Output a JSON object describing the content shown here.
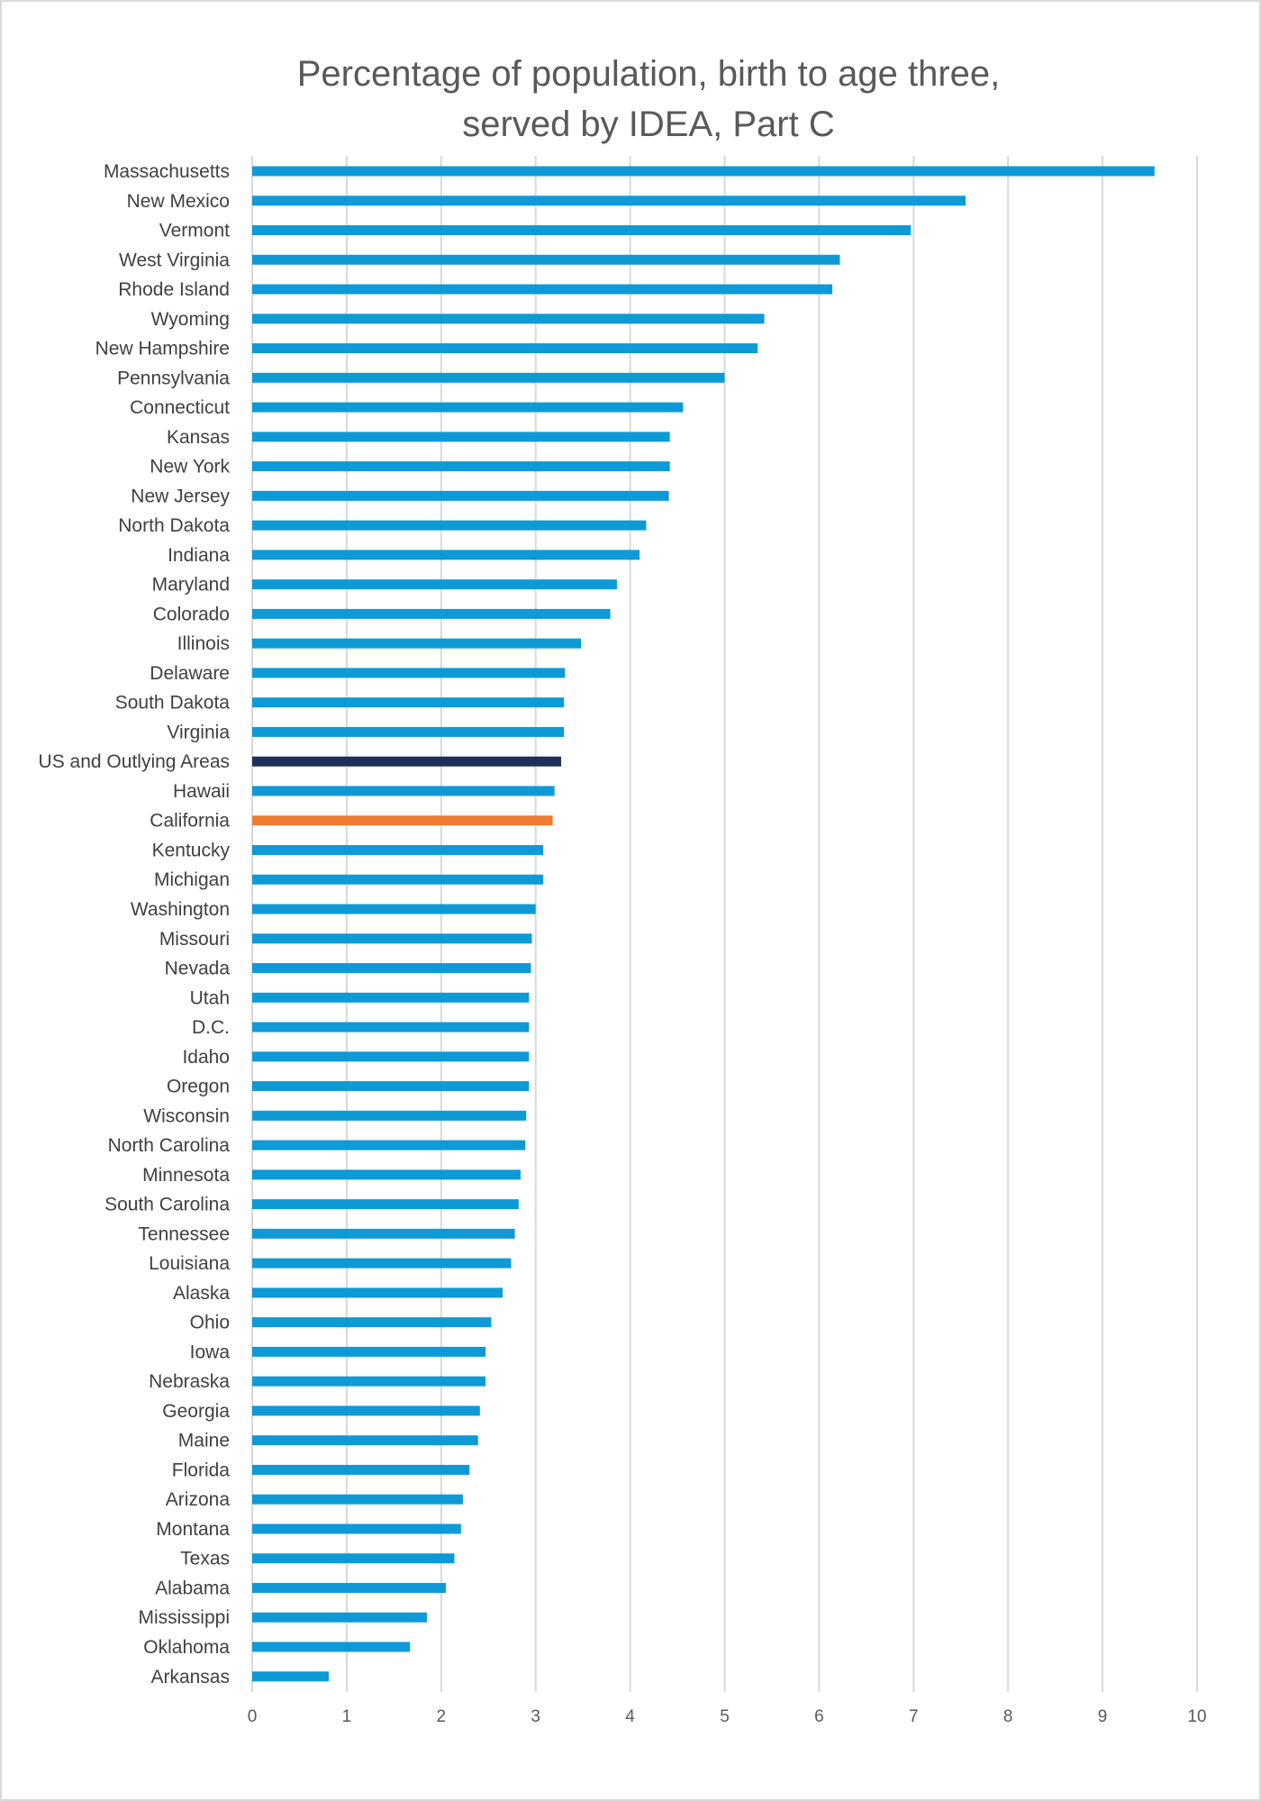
{
  "chart_data": {
    "type": "bar",
    "orientation": "horizontal",
    "title_lines": [
      "Percentage of population, birth to age three,",
      "served by IDEA, Part C"
    ],
    "categories": [
      "Massachusetts",
      "New Mexico",
      "Vermont",
      "West Virginia",
      "Rhode Island",
      "Wyoming",
      "New Hampshire",
      "Pennsylvania",
      "Connecticut",
      "Kansas",
      "New York",
      "New Jersey",
      "North Dakota",
      "Indiana",
      "Maryland",
      "Colorado",
      "Illinois",
      "Delaware",
      "South Dakota",
      "Virginia",
      "US and Outlying Areas",
      "Hawaii",
      "California",
      "Kentucky",
      "Michigan",
      "Washington",
      "Missouri",
      "Nevada",
      "Utah",
      "D.C.",
      "Idaho",
      "Oregon",
      "Wisconsin",
      "North Carolina",
      "Minnesota",
      "South Carolina",
      "Tennessee",
      "Louisiana",
      "Alaska",
      "Ohio",
      "Iowa",
      "Nebraska",
      "Georgia",
      "Maine",
      "Florida",
      "Arizona",
      "Montana",
      "Texas",
      "Alabama",
      "Mississippi",
      "Oklahoma",
      "Arkansas"
    ],
    "values": [
      9.55,
      7.55,
      6.97,
      6.22,
      6.14,
      5.42,
      5.35,
      5.0,
      4.56,
      4.42,
      4.42,
      4.41,
      4.17,
      4.1,
      3.86,
      3.79,
      3.48,
      3.31,
      3.3,
      3.3,
      3.27,
      3.2,
      3.18,
      3.08,
      3.08,
      3.0,
      2.96,
      2.95,
      2.93,
      2.93,
      2.93,
      2.93,
      2.9,
      2.89,
      2.84,
      2.82,
      2.78,
      2.74,
      2.65,
      2.53,
      2.47,
      2.47,
      2.41,
      2.39,
      2.3,
      2.23,
      2.21,
      2.14,
      2.05,
      1.85,
      1.67,
      0.81
    ],
    "highlights": {
      "US and Outlying Areas": "#1f2f56",
      "California": "#ed7d31"
    },
    "default_color": "#0e9ad6",
    "xlim": [
      0,
      10
    ],
    "xticks": [
      "0",
      "1",
      "2",
      "3",
      "4",
      "5",
      "6",
      "7",
      "8",
      "9",
      "10"
    ],
    "grid": true,
    "legend": "none"
  }
}
